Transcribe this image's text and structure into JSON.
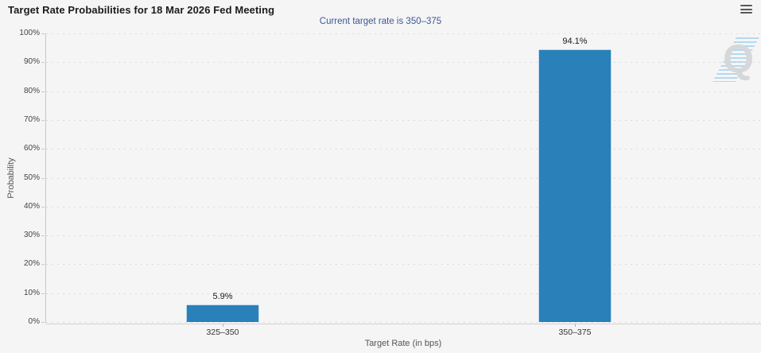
{
  "header": {
    "menu_icon": "hamburger-menu"
  },
  "chart_data": {
    "type": "bar",
    "title": "Target Rate Probabilities for 18 Mar 2026 Fed Meeting",
    "subtitle": "Current target rate is 350–375",
    "categories": [
      "325–350",
      "350–375"
    ],
    "values": [
      5.9,
      94.1
    ],
    "value_labels": [
      "5.9%",
      "94.1%"
    ],
    "xlabel": "Target Rate (in bps)",
    "ylabel": "Probability",
    "ylim": [
      0,
      100
    ],
    "ytick_step": 10,
    "yticks": [
      "100%",
      "90%",
      "80%",
      "70%",
      "60%",
      "50%",
      "40%",
      "30%",
      "20%",
      "10%",
      "0%"
    ],
    "grid": "horizontal-dotted",
    "legend": "none",
    "bar_color": "#2a80b9",
    "subtitle_color": "#3e5794"
  },
  "watermark": {
    "label": "Q"
  }
}
